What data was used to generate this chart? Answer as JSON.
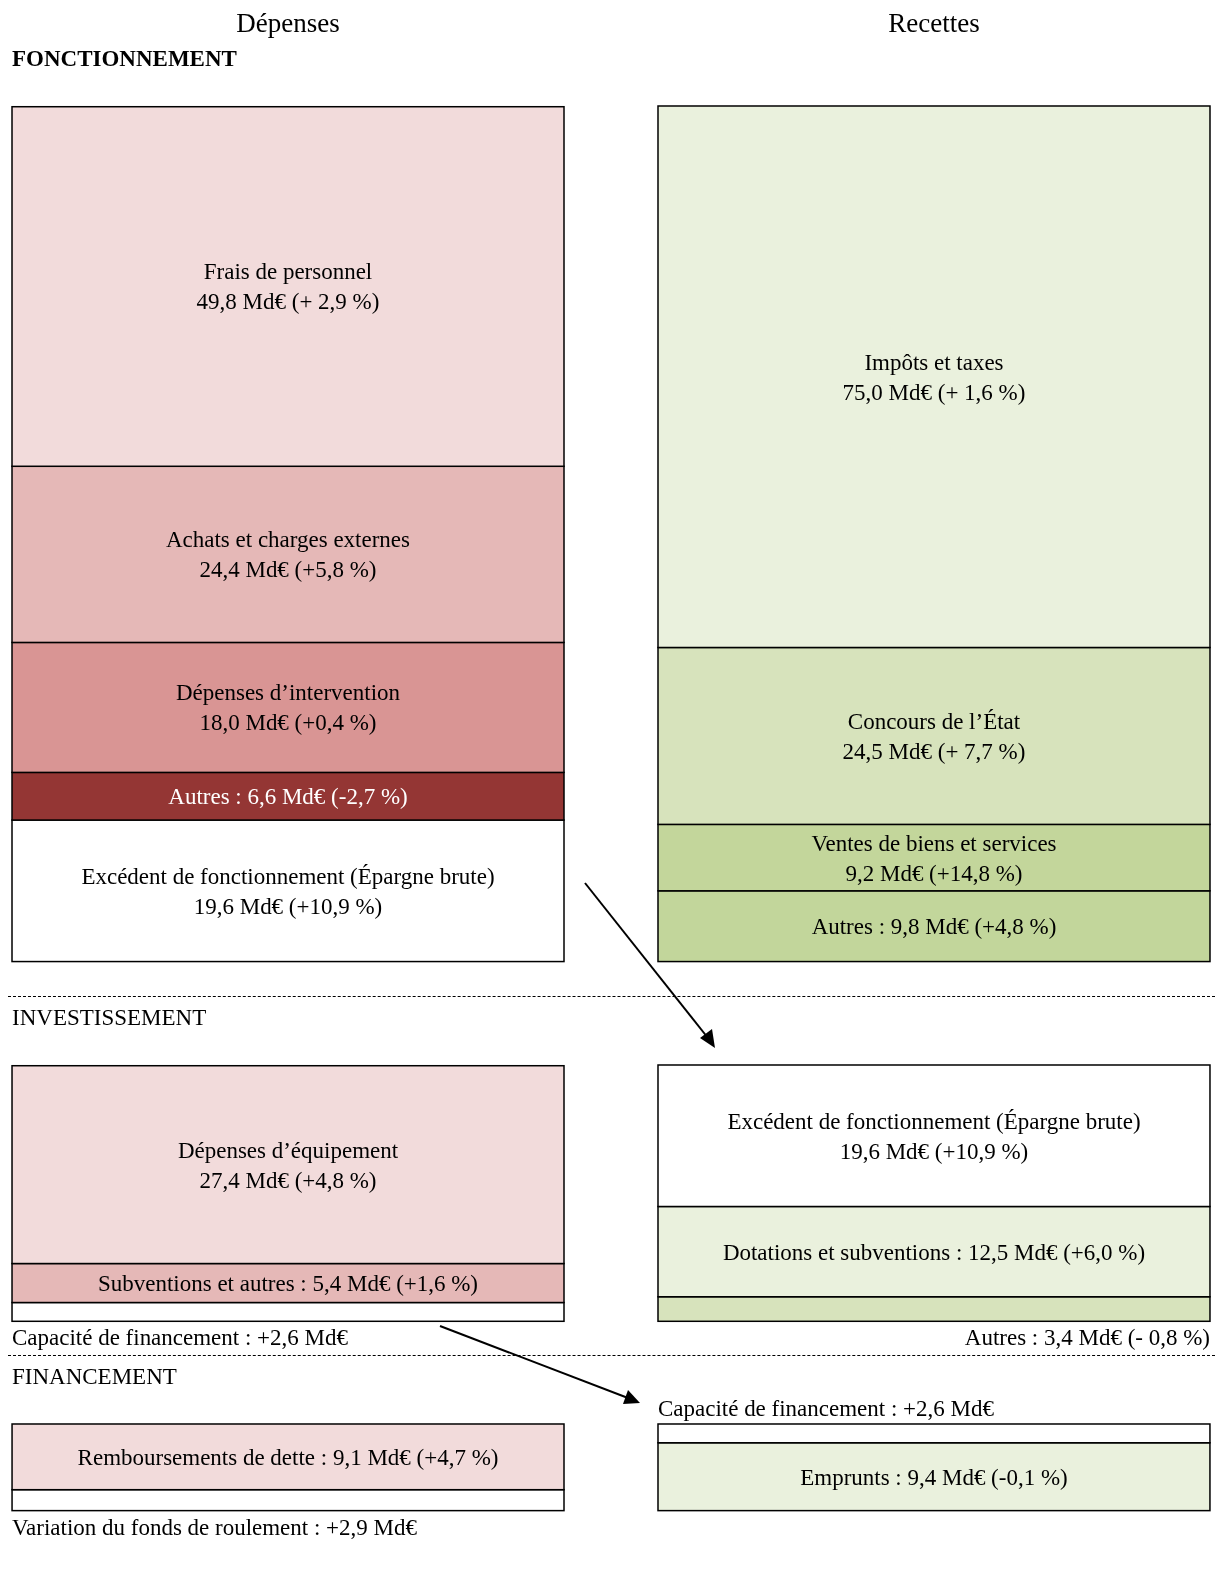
{
  "chart_data": [
    {
      "type": "bar",
      "stacked": true,
      "title": "FONCTIONNEMENT",
      "categories": [
        "Dépenses",
        "Recettes"
      ],
      "tick_labels": "x",
      "series": [
        {
          "color": "#ffffff",
          "values": [
            19.6,
            null
          ],
          "value_labels": [
            "Excédent de fonctionnement (Épargne brute)\n19,6 Md€ (+10,9 %)",
            null
          ]
        },
        {
          "color": "#943634",
          "values": [
            6.6,
            null
          ],
          "value_labels": [
            "Autres : 6,6 Md€ (-2,7 %)",
            null
          ]
        },
        {
          "color": "#d99594",
          "values": [
            18.0,
            null
          ],
          "value_labels": [
            "Dépenses d’intervention\n18,0 Md€ (+0,4 %)",
            null
          ]
        },
        {
          "color": "#e5b8b7",
          "values": [
            24.4,
            null
          ],
          "value_labels": [
            "Achats et charges externes\n24,4 Md€ (+5,8 %)",
            null
          ]
        },
        {
          "color": "#f2dbdb",
          "values": [
            49.8,
            null
          ],
          "value_labels": [
            "Frais de personnel\n49,8 Md€ (+ 2,9 %)",
            null
          ]
        },
        {
          "color": "#c2d69b",
          "values": [
            null,
            9.8
          ],
          "value_labels": [
            null,
            "Autres : 9,8 Md€ (+4,8 %)"
          ]
        },
        {
          "color": "#c3d69b",
          "values": [
            null,
            9.2
          ],
          "value_labels": [
            null,
            "Ventes de biens et services\n9,2 Md€ (+14,8 %)"
          ]
        },
        {
          "color": "#d7e3bc",
          "values": [
            null,
            24.5
          ],
          "value_labels": [
            null,
            "Concours de l’État\n24,5 Md€ (+ 7,7 %)"
          ]
        },
        {
          "color": "#eaf1dd",
          "values": [
            null,
            75.0
          ],
          "value_labels": [
            null,
            "Impôts et taxes\n75,0 Md€ (+ 1,6 %)"
          ]
        }
      ]
    },
    {
      "type": "bar",
      "stacked": true,
      "title": "INVESTISSEMENT",
      "categories": [
        null,
        null
      ],
      "tick_labels": false,
      "series": [
        {
          "color": "#ffffff",
          "values": [
            2.6,
            null
          ],
          "value_labels": [
            "Capacité de financement : +2,6 Md€",
            null
          ]
        },
        {
          "color": "#e5b8b7",
          "values": [
            5.4,
            null
          ],
          "value_labels": [
            "Subventions et autres : 5,4 Md€ (+1,6 %)",
            null
          ]
        },
        {
          "color": "#f2dbdb",
          "values": [
            27.4,
            null
          ],
          "value_labels": [
            "Dépenses d’équipement\n27,4 Md€ (+4,8 %)",
            null
          ]
        },
        {
          "color": "#d7e3bc",
          "values": [
            null,
            3.4
          ],
          "value_labels": [
            null,
            "Autres : 3,4 Md€ (- 0,8 %)"
          ]
        },
        {
          "color": "#eaf1dd",
          "values": [
            null,
            12.5
          ],
          "value_labels": [
            null,
            "Dotations et subventions : 12,5 Md€ (+6,0 %)"
          ]
        },
        {
          "color": "#ffffff",
          "values": [
            null,
            19.6
          ],
          "value_labels": [
            null,
            "Excédent de fonctionnement (Épargne brute)\n19,6 Md€ (+10,9 %)"
          ]
        }
      ]
    },
    {
      "type": "bar",
      "stacked": true,
      "title": "FINANCEMENT",
      "categories": [
        null,
        null
      ],
      "tick_labels": false,
      "series": [
        {
          "color": "#ffffff",
          "values": [
            2.9,
            null
          ],
          "value_labels": [
            "Variation du fonds de roulement : +2,9 Md€",
            null
          ]
        },
        {
          "color": "#f2dbdb",
          "values": [
            9.1,
            null
          ],
          "value_labels": [
            "Remboursements de dette : 9,1 Md€ (+4,7 %)",
            null
          ]
        },
        {
          "color": "#eaf1dd",
          "values": [
            null,
            9.4
          ],
          "value_labels": [
            null,
            "Emprunts : 9,4 Md€ (-0,1 %)"
          ]
        },
        {
          "color": "#ffffff",
          "values": [
            null,
            2.6
          ],
          "value_labels": [
            null,
            "Capacité de financement : +2,6 Md€"
          ]
        }
      ]
    }
  ]
}
